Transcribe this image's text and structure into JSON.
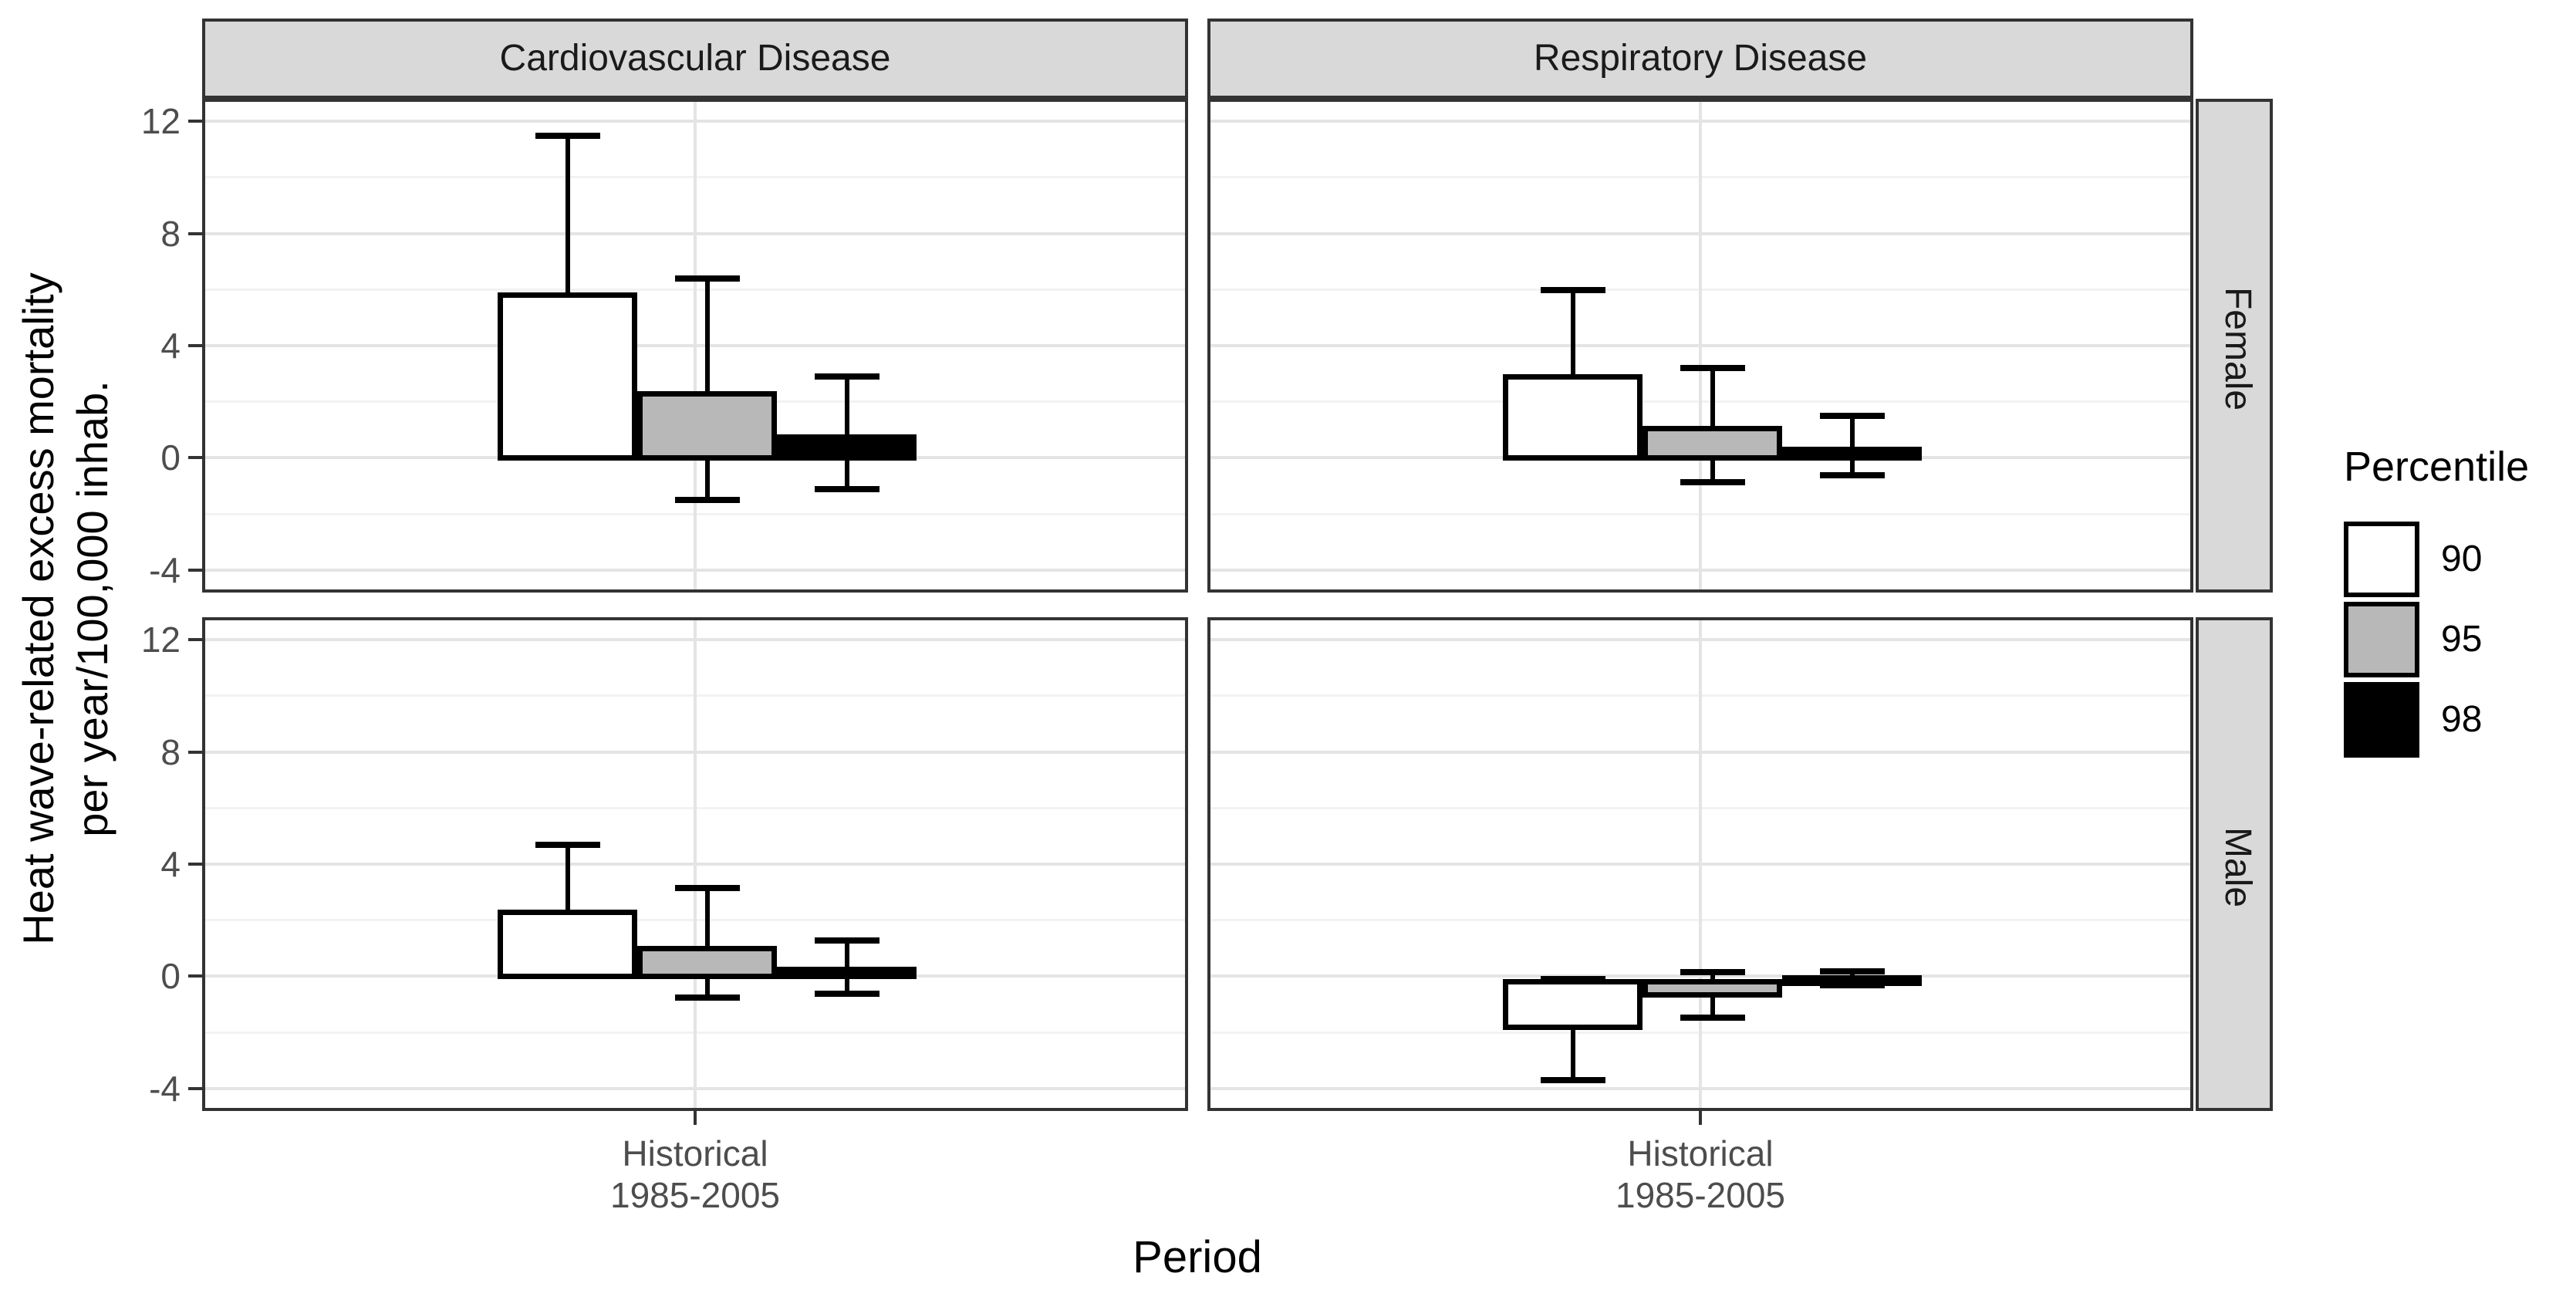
{
  "chart_data": {
    "type": "bar",
    "title": "",
    "facet_grid": {
      "columns": [
        "Cardiovascular Disease",
        "Respiratory Disease"
      ],
      "rows": [
        "Female",
        "Male"
      ]
    },
    "xlabel": "Period",
    "x_category_lines": [
      "Historical",
      "1985-2005"
    ],
    "ylabel_lines": [
      "Heat wave-related excess mortality",
      "per year/100,000 inhab."
    ],
    "y_axis": {
      "ticks": [
        12,
        8,
        4,
        0,
        -4
      ],
      "minor_gridlines": [
        10,
        6,
        2,
        -2
      ],
      "range": [
        -4.8,
        12.8
      ]
    },
    "legend": {
      "title": "Percentile",
      "entries": [
        {
          "label": "90",
          "fill": "#ffffff"
        },
        {
          "label": "95",
          "fill": "#b8b8b8"
        },
        {
          "label": "98",
          "fill": "#000000"
        }
      ]
    },
    "panels": [
      {
        "column": "Cardiovascular Disease",
        "row": "Female",
        "bars": [
          {
            "percentile": "90",
            "value": 6.0,
            "ci_low": 0.4,
            "ci_high": 11.6
          },
          {
            "percentile": "95",
            "value": 2.5,
            "ci_low": -1.4,
            "ci_high": 6.5
          },
          {
            "percentile": "98",
            "value": 0.95,
            "ci_low": -1.0,
            "ci_high": 3.0
          }
        ]
      },
      {
        "column": "Respiratory Disease",
        "row": "Female",
        "bars": [
          {
            "percentile": "90",
            "value": 3.1,
            "ci_low": 0.3,
            "ci_high": 6.1
          },
          {
            "percentile": "95",
            "value": 1.25,
            "ci_low": -0.75,
            "ci_high": 3.3
          },
          {
            "percentile": "98",
            "value": 0.5,
            "ci_low": -0.5,
            "ci_high": 1.6
          }
        ]
      },
      {
        "column": "Cardiovascular Disease",
        "row": "Male",
        "bars": [
          {
            "percentile": "90",
            "value": 2.5,
            "ci_low": 0.3,
            "ci_high": 4.8
          },
          {
            "percentile": "95",
            "value": 1.2,
            "ci_low": -0.65,
            "ci_high": 3.25
          },
          {
            "percentile": "98",
            "value": 0.45,
            "ci_low": -0.5,
            "ci_high": 1.4
          }
        ]
      },
      {
        "column": "Respiratory Disease",
        "row": "Male",
        "bars": [
          {
            "percentile": "90",
            "value": -1.8,
            "ci_low": -3.6,
            "ci_high": 0.0
          },
          {
            "percentile": "95",
            "value": -0.65,
            "ci_low": -1.35,
            "ci_high": 0.25
          },
          {
            "percentile": "98",
            "value": 0.15,
            "ci_low": -0.2,
            "ci_high": 0.3
          }
        ]
      }
    ],
    "colors": {
      "bar_fill_90": "#ffffff",
      "bar_fill_95": "#b8b8b8",
      "bar_fill_98": "#000000",
      "strip_fill": "#d9d9d9",
      "panel_border": "#333333",
      "grid_major": "#e4e4e4",
      "grid_minor": "#f2f2f2",
      "tick_text": "#4d4d4d"
    }
  }
}
